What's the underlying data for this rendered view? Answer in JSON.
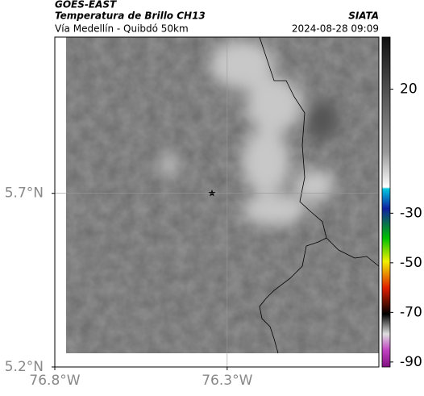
{
  "header": {
    "title": "GOES-EAST",
    "subtitle": "Temperatura de Brillo CH13",
    "source": "SIATA",
    "region": "Vía Medellín - Quibdó 50km",
    "datetime": "2024-08-28 09:09"
  },
  "map": {
    "xlim": [
      -76.8,
      -75.86
    ],
    "ylim": [
      5.2,
      6.15
    ],
    "xticks": [
      {
        "value": -76.8,
        "label": "76.8°W"
      },
      {
        "value": -76.3,
        "label": "76.3°W"
      }
    ],
    "yticks": [
      {
        "value": 5.2,
        "label": "5.2°N"
      },
      {
        "value": 5.7,
        "label": "5.7°N"
      }
    ],
    "grid": true
  },
  "colorbar": {
    "lim": [
      -92,
      41
    ],
    "ticks": [
      20,
      -30,
      -50,
      -70,
      -90
    ]
  }
}
